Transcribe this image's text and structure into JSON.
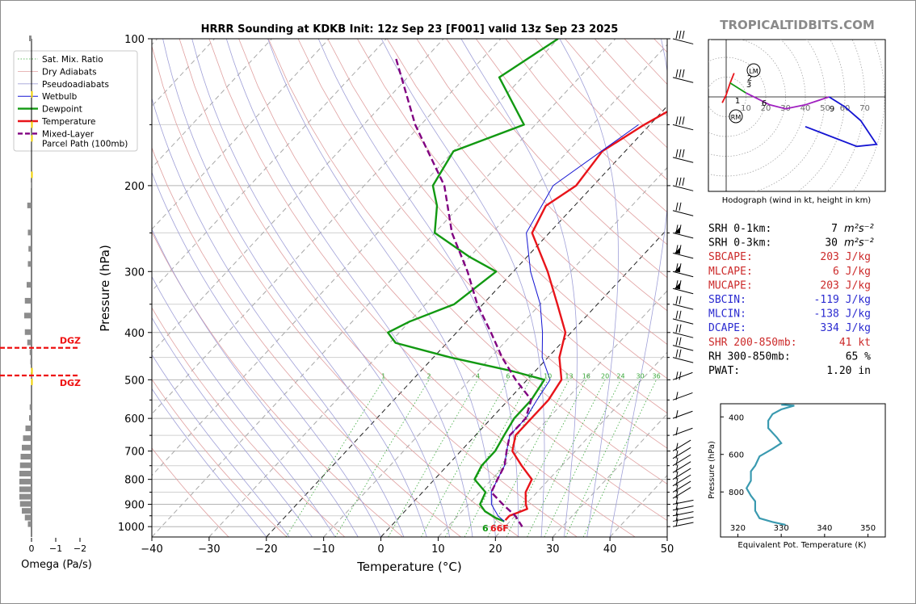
{
  "title": "HRRR Sounding at KDKB Init: 12z Sep 23 [F001] valid 13z Sep 23 2025",
  "brand": "TROPICALTIDBITS.COM",
  "colors": {
    "temperature": "#e8141a",
    "dewpoint": "#129912",
    "wetbulb": "#1414d2",
    "parcel": "#800080",
    "dry_adiabat": "#e0a0a0",
    "moist_adiabat": "#a0a0d8",
    "mixing_ratio": "#38a838",
    "brand": "#8a8a8a",
    "red_text": "#cc2a2a",
    "blue_text": "#2a2ad0",
    "theta_e": "#3a9ab0"
  },
  "chart_data": [
    {
      "id": "skewt",
      "type": "line",
      "xlabel": "Temperature (°C)",
      "ylabel": "Pressure (hPa)",
      "xlim": [
        -40,
        50
      ],
      "ylim": [
        1050,
        100
      ],
      "x_ticks": [
        "−40",
        "−30",
        "−20",
        "−10",
        "0",
        "10",
        "20",
        "30",
        "40",
        "50"
      ],
      "y_ticks": [
        "100",
        "200",
        "300",
        "400",
        "500",
        "600",
        "700",
        "800",
        "900",
        "1000"
      ],
      "mixing_ratio_labels": [
        "1",
        "2",
        "4",
        "6",
        "8",
        "10",
        "13",
        "16",
        "20",
        "24",
        "30",
        "36"
      ],
      "surface_labels": {
        "dewpoint": "66",
        "temperature": "66F",
        "dewpoint_prefix": "6"
      },
      "legend": {
        "position": "top-left",
        "entries": [
          "Sat. Mix. Ratio",
          "Dry Adiabats",
          "Pseudoadiabats",
          "Wetbulb",
          "Dewpoint",
          "Temperature",
          "Mixed-Layer\nParcel Path (100mb)"
        ]
      },
      "series": [
        {
          "name": "Temperature",
          "points": [
            [
              100,
              -13
            ],
            [
              120,
              -14
            ],
            [
              150,
              -21
            ],
            [
              170,
              -24
            ],
            [
              200,
              -23
            ],
            [
              220,
              -25
            ],
            [
              250,
              -23
            ],
            [
              300,
              -14
            ],
            [
              350,
              -7
            ],
            [
              400,
              -1
            ],
            [
              450,
              2
            ],
            [
              500,
              6
            ],
            [
              550,
              7
            ],
            [
              600,
              7
            ],
            [
              650,
              7
            ],
            [
              700,
              9
            ],
            [
              750,
              13
            ],
            [
              800,
              17
            ],
            [
              850,
              18
            ],
            [
              900,
              20
            ],
            [
              920,
              21
            ],
            [
              935,
              20
            ],
            [
              950,
              19
            ],
            [
              970,
              19
            ]
          ]
        },
        {
          "name": "Dewpoint",
          "points": [
            [
              100,
              -50
            ],
            [
              120,
              -54
            ],
            [
              150,
              -42
            ],
            [
              170,
              -50
            ],
            [
              200,
              -48
            ],
            [
              220,
              -44
            ],
            [
              250,
              -40
            ],
            [
              280,
              -30
            ],
            [
              300,
              -23
            ],
            [
              350,
              -25
            ],
            [
              380,
              -30
            ],
            [
              400,
              -32
            ],
            [
              420,
              -29
            ],
            [
              450,
              -17
            ],
            [
              480,
              -4
            ],
            [
              500,
              3
            ],
            [
              550,
              4
            ],
            [
              600,
              4
            ],
            [
              650,
              5
            ],
            [
              700,
              6
            ],
            [
              750,
              6
            ],
            [
              800,
              7
            ],
            [
              850,
              11
            ],
            [
              900,
              12
            ],
            [
              930,
              14
            ],
            [
              960,
              17
            ],
            [
              975,
              19
            ]
          ]
        },
        {
          "name": "Wetbulb",
          "points": [
            [
              150,
              -22
            ],
            [
              200,
              -27
            ],
            [
              250,
              -24
            ],
            [
              300,
              -17
            ],
            [
              350,
              -10
            ],
            [
              400,
              -5
            ],
            [
              450,
              -1
            ],
            [
              500,
              4
            ],
            [
              550,
              5
            ],
            [
              600,
              6
            ],
            [
              650,
              6
            ],
            [
              700,
              8
            ],
            [
              750,
              10
            ],
            [
              800,
              11
            ],
            [
              850,
              12
            ],
            [
              900,
              14
            ],
            [
              950,
              17
            ],
            [
              975,
              19
            ]
          ]
        },
        {
          "name": "Mixed-Layer Parcel Path (100mb)",
          "points": [
            [
              110,
              -75
            ],
            [
              150,
              -61
            ],
            [
              200,
              -46
            ],
            [
              250,
              -37
            ],
            [
              300,
              -28
            ],
            [
              350,
              -21
            ],
            [
              400,
              -14
            ],
            [
              450,
              -8
            ],
            [
              500,
              -2
            ],
            [
              550,
              4
            ],
            [
              600,
              6
            ],
            [
              650,
              6
            ],
            [
              700,
              8
            ],
            [
              750,
              10
            ],
            [
              800,
              11
            ],
            [
              850,
              12
            ],
            [
              900,
              16
            ],
            [
              950,
              20
            ],
            [
              1000,
              23
            ]
          ]
        }
      ]
    },
    {
      "id": "hodograph",
      "type": "line",
      "xlabel": "Hodograph (wind in kt, height in km)",
      "ring_labels": [
        "10",
        "20",
        "30",
        "40",
        "50",
        "60",
        "70"
      ],
      "markers": [
        "LM",
        "RM"
      ],
      "height_labels": [
        "1",
        "2",
        "3",
        "6",
        "9"
      ],
      "series": [
        {
          "name": "0-3 km",
          "color": "#e8141a",
          "points": [
            [
              -2,
              -3
            ],
            [
              0,
              1
            ],
            [
              2,
              7
            ],
            [
              4,
              12
            ]
          ]
        },
        {
          "name": "3-6 km",
          "color": "#129912",
          "points": [
            [
              2,
              7
            ],
            [
              10,
              2
            ]
          ]
        },
        {
          "name": "6-9 km",
          "color": "#a020c0",
          "points": [
            [
              10,
              2
            ],
            [
              22,
              -4
            ],
            [
              30,
              -6
            ],
            [
              40,
              -4
            ],
            [
              52,
              0
            ]
          ]
        },
        {
          "name": "9-12 km",
          "color": "#1414d2",
          "points": [
            [
              52,
              0
            ],
            [
              60,
              -5
            ],
            [
              68,
              -12
            ],
            [
              76,
              -24
            ],
            [
              66,
              -25
            ],
            [
              40,
              -15
            ]
          ]
        }
      ]
    },
    {
      "id": "theta-e",
      "type": "line",
      "xlabel": "Equivalent Pot. Temperature (K)",
      "ylabel": "Pressure (hPa)",
      "xlim": [
        316,
        354
      ],
      "ylim": [
        1040,
        330
      ],
      "x_ticks": [
        "320",
        "330",
        "340",
        "350"
      ],
      "y_ticks": [
        "400",
        "600",
        "800"
      ],
      "series": [
        {
          "name": "Theta-E",
          "points": [
            [
              330,
              335
            ],
            [
              333,
              340
            ],
            [
              330,
              360
            ],
            [
              328,
              385
            ],
            [
              327,
              420
            ],
            [
              327,
              460
            ],
            [
              329,
              510
            ],
            [
              330,
              540
            ],
            [
              328,
              570
            ],
            [
              325,
              610
            ],
            [
              324,
              660
            ],
            [
              323,
              690
            ],
            [
              323,
              740
            ],
            [
              322,
              780
            ],
            [
              323,
              820
            ],
            [
              324,
              850
            ],
            [
              324,
              900
            ],
            [
              325,
              940
            ],
            [
              328,
              960
            ],
            [
              331,
              975
            ]
          ]
        }
      ]
    },
    {
      "id": "omega",
      "type": "bar",
      "xlabel": "Omega (Pa/s)",
      "x_ticks": [
        "0",
        "−1",
        "−2"
      ],
      "dgz_label": "DGZ",
      "values": [
        [
          100,
          0.2
        ],
        [
          200,
          0.05
        ],
        [
          220,
          0.35
        ],
        [
          250,
          0.3
        ],
        [
          270,
          0.25
        ],
        [
          290,
          0.3
        ],
        [
          320,
          0.4
        ],
        [
          345,
          0.55
        ],
        [
          370,
          0.6
        ],
        [
          400,
          0.55
        ],
        [
          420,
          0.35
        ],
        [
          440,
          0.15
        ],
        [
          460,
          0.1
        ],
        [
          490,
          0.05
        ],
        [
          570,
          0.15
        ],
        [
          600,
          0.2
        ],
        [
          630,
          0.5
        ],
        [
          660,
          0.7
        ],
        [
          690,
          0.8
        ],
        [
          720,
          0.9
        ],
        [
          750,
          0.95
        ],
        [
          780,
          1.0
        ],
        [
          810,
          1.0
        ],
        [
          840,
          1.0
        ],
        [
          870,
          1.0
        ],
        [
          900,
          0.95
        ],
        [
          930,
          0.8
        ],
        [
          960,
          0.55
        ],
        [
          990,
          0.3
        ]
      ],
      "dgz_hpa": [
        430,
        490
      ]
    }
  ],
  "stats": [
    {
      "label": "SRH 0-1km:",
      "value": "7",
      "unit": "m²s⁻²",
      "color": "black"
    },
    {
      "label": "SRH 0-3km:",
      "value": "30",
      "unit": "m²s⁻²",
      "color": "black"
    },
    {
      "label": "SBCAPE:",
      "value": "203 J/kg",
      "unit": "",
      "color": "red"
    },
    {
      "label": "MLCAPE:",
      "value": "6 J/kg",
      "unit": "",
      "color": "red"
    },
    {
      "label": "MUCAPE:",
      "value": "203 J/kg",
      "unit": "",
      "color": "red"
    },
    {
      "label": "SBCIN:",
      "value": "-119 J/kg",
      "unit": "",
      "color": "blue"
    },
    {
      "label": "MLCIN:",
      "value": "-138 J/kg",
      "unit": "",
      "color": "blue"
    },
    {
      "label": "DCAPE:",
      "value": "334 J/kg",
      "unit": "",
      "color": "blue"
    },
    {
      "label": "SHR 200-850mb:",
      "value": "41 kt",
      "unit": "",
      "color": "red"
    },
    {
      "label": "RH 300-850mb:",
      "value": "65 %",
      "unit": "",
      "color": "black"
    },
    {
      "label": "PWAT:",
      "value": "1.20 in",
      "unit": "",
      "color": "black"
    }
  ]
}
